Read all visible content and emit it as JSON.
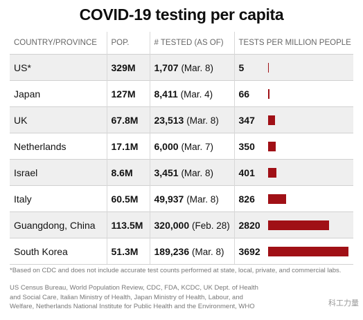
{
  "chart_data": {
    "type": "table",
    "title": "COVID-19 testing per capita",
    "columns": [
      "COUNTRY/PROVINCE",
      "POP.",
      "# TESTED (AS OF)",
      "TESTS PER MILLION PEOPLE"
    ],
    "rows": [
      {
        "country": "US*",
        "pop": "329M",
        "tested": "1,707",
        "as_of": "(Mar. 8)",
        "per_million": 5
      },
      {
        "country": "Japan",
        "pop": "127M",
        "tested": "8,411",
        "as_of": "(Mar. 4)",
        "per_million": 66
      },
      {
        "country": "UK",
        "pop": "67.8M",
        "tested": "23,513",
        "as_of": "(Mar. 8)",
        "per_million": 347
      },
      {
        "country": "Netherlands",
        "pop": "17.1M",
        "tested": "6,000",
        "as_of": "(Mar. 7)",
        "per_million": 350
      },
      {
        "country": "Israel",
        "pop": "8.6M",
        "tested": "3,451",
        "as_of": "(Mar. 8)",
        "per_million": 401
      },
      {
        "country": "Italy",
        "pop": "60.5M",
        "tested": "49,937",
        "as_of": "(Mar. 8)",
        "per_million": 826
      },
      {
        "country": "Guangdong, China",
        "pop": "113.5M",
        "tested": "320,000",
        "as_of": "(Feb. 28)",
        "per_million": 2820
      },
      {
        "country": "South Korea",
        "pop": "51.3M",
        "tested": "189,236",
        "as_of": "(Mar. 8)",
        "per_million": 3692
      }
    ],
    "bar_max": 3692,
    "bar_color": "#a01016"
  },
  "footnote": "*Based on CDC and does not include accurate test counts performed at state, local, private, and commercial labs.",
  "source_lines": [
    "US Census Bureau, World Population Review, CDC, FDA, KCDC, UK Dept. of Health",
    "and Social Care, Italian Ministry of Health, Japan Ministry of Health, Labour, and",
    "Welfare, Netherlands National Institute for Public Health and the Environment, WHO"
  ],
  "watermark": "科工力量"
}
